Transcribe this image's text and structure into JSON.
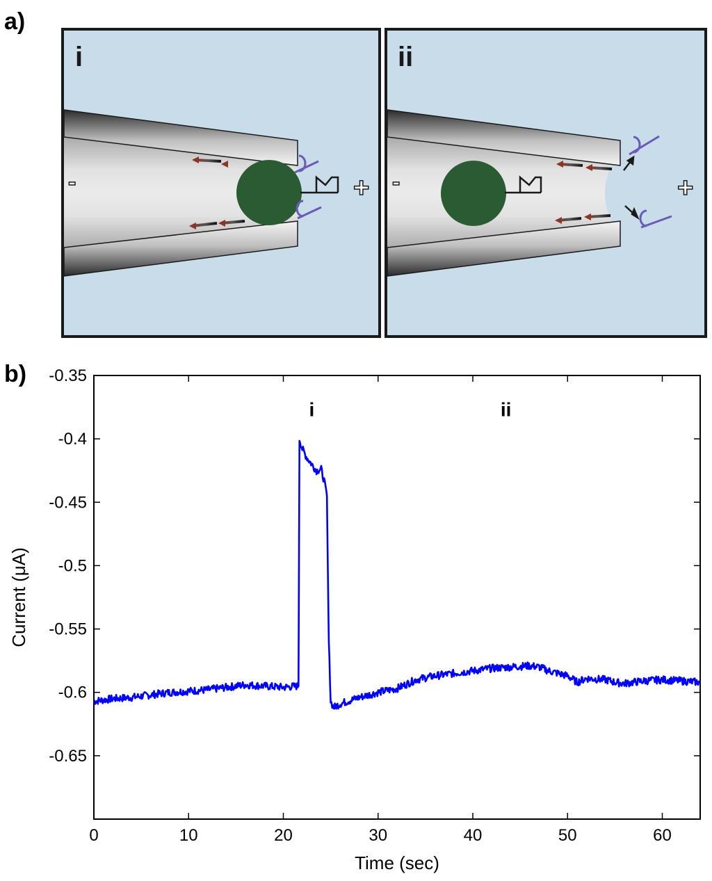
{
  "panel_a": {
    "label": "a)",
    "subpanels": [
      {
        "label": "i",
        "minus": "-",
        "plus": "+"
      },
      {
        "label": "ii",
        "minus": "-",
        "plus": "+"
      }
    ],
    "colors": {
      "background": "#c8dcea",
      "bead": "#2a5b32",
      "arrow": "#7a3a2a",
      "antibody": "#6a5ab8"
    }
  },
  "panel_b": {
    "label": "b)"
  },
  "chart_data": {
    "type": "line",
    "xlabel": "Time (sec)",
    "ylabel": "Current (μA)",
    "xlim": [
      0,
      64
    ],
    "ylim": [
      -0.7,
      -0.35
    ],
    "xticks": [
      0,
      10,
      20,
      30,
      40,
      50,
      60
    ],
    "yticks": [
      -0.35,
      -0.4,
      -0.45,
      -0.5,
      -0.55,
      -0.6,
      -0.65
    ],
    "ytick_labels": [
      "-0.35",
      "-0.4",
      "-0.45",
      "-0.5",
      "-0.55",
      "-0.6",
      "-0.65"
    ],
    "grid": false,
    "line_color": "#0000ff",
    "annotations": [
      {
        "text": "i",
        "x": 23.0,
        "y": -0.382
      },
      {
        "text": "ii",
        "x": 43.5,
        "y": -0.382
      }
    ],
    "series": [
      {
        "x": [
          0,
          2,
          4,
          6,
          8,
          10,
          12,
          14,
          16,
          18,
          20,
          21.6,
          21.7,
          22.0,
          22.5,
          23.0,
          23.5,
          24.0,
          24.3,
          24.6,
          24.8,
          25.0,
          25.3,
          26,
          28,
          30,
          32,
          34,
          36,
          38,
          40,
          42,
          44,
          46,
          47,
          48,
          50,
          51,
          52,
          54,
          55,
          56,
          58,
          60,
          62,
          64
        ],
        "y": [
          -0.607,
          -0.605,
          -0.604,
          -0.602,
          -0.6,
          -0.599,
          -0.598,
          -0.596,
          -0.594,
          -0.595,
          -0.596,
          -0.595,
          -0.4,
          -0.408,
          -0.415,
          -0.42,
          -0.425,
          -0.424,
          -0.433,
          -0.445,
          -0.56,
          -0.607,
          -0.612,
          -0.609,
          -0.604,
          -0.6,
          -0.597,
          -0.59,
          -0.587,
          -0.585,
          -0.583,
          -0.581,
          -0.58,
          -0.579,
          -0.58,
          -0.583,
          -0.587,
          -0.592,
          -0.589,
          -0.59,
          -0.592,
          -0.593,
          -0.591,
          -0.59,
          -0.591,
          -0.592
        ]
      }
    ]
  }
}
